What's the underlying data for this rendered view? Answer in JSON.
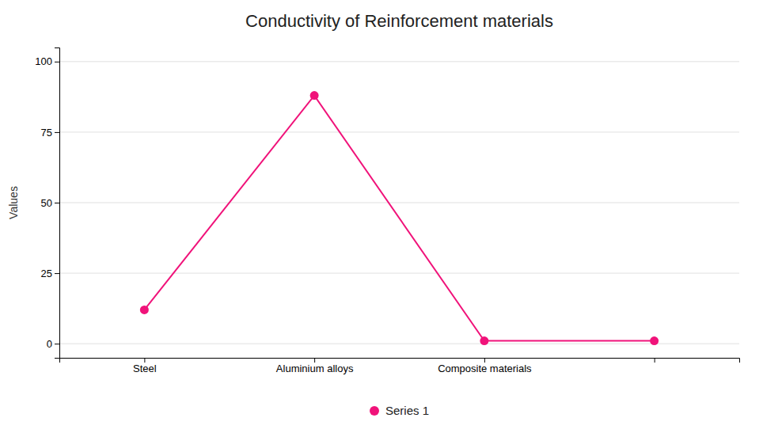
{
  "chart_data": {
    "type": "line",
    "title": "Conductivity of Reinforcement materials",
    "ylabel": "Values",
    "categories": [
      "Steel",
      "Aluminium alloys",
      "Composite materials",
      null
    ],
    "series": [
      {
        "name": "Series 1",
        "color": "#F0137A",
        "values": [
          12,
          88,
          1,
          1
        ]
      }
    ],
    "ylim": [
      -5,
      105
    ],
    "yticks": [
      0,
      25,
      50,
      75,
      100
    ],
    "grid": true,
    "legend": "bottom",
    "marker": "circle"
  }
}
